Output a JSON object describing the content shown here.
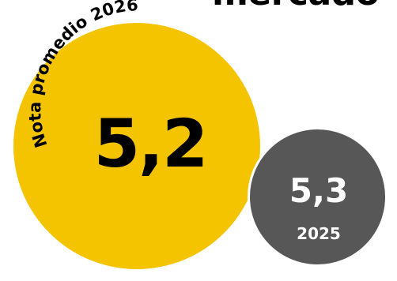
{
  "title_fragment": "mercado",
  "current": {
    "label": "Nota promedio 2026",
    "value": "5,2",
    "color": "#f5c400"
  },
  "previous": {
    "value": "5,3",
    "year": "2025",
    "color": "#575757"
  }
}
